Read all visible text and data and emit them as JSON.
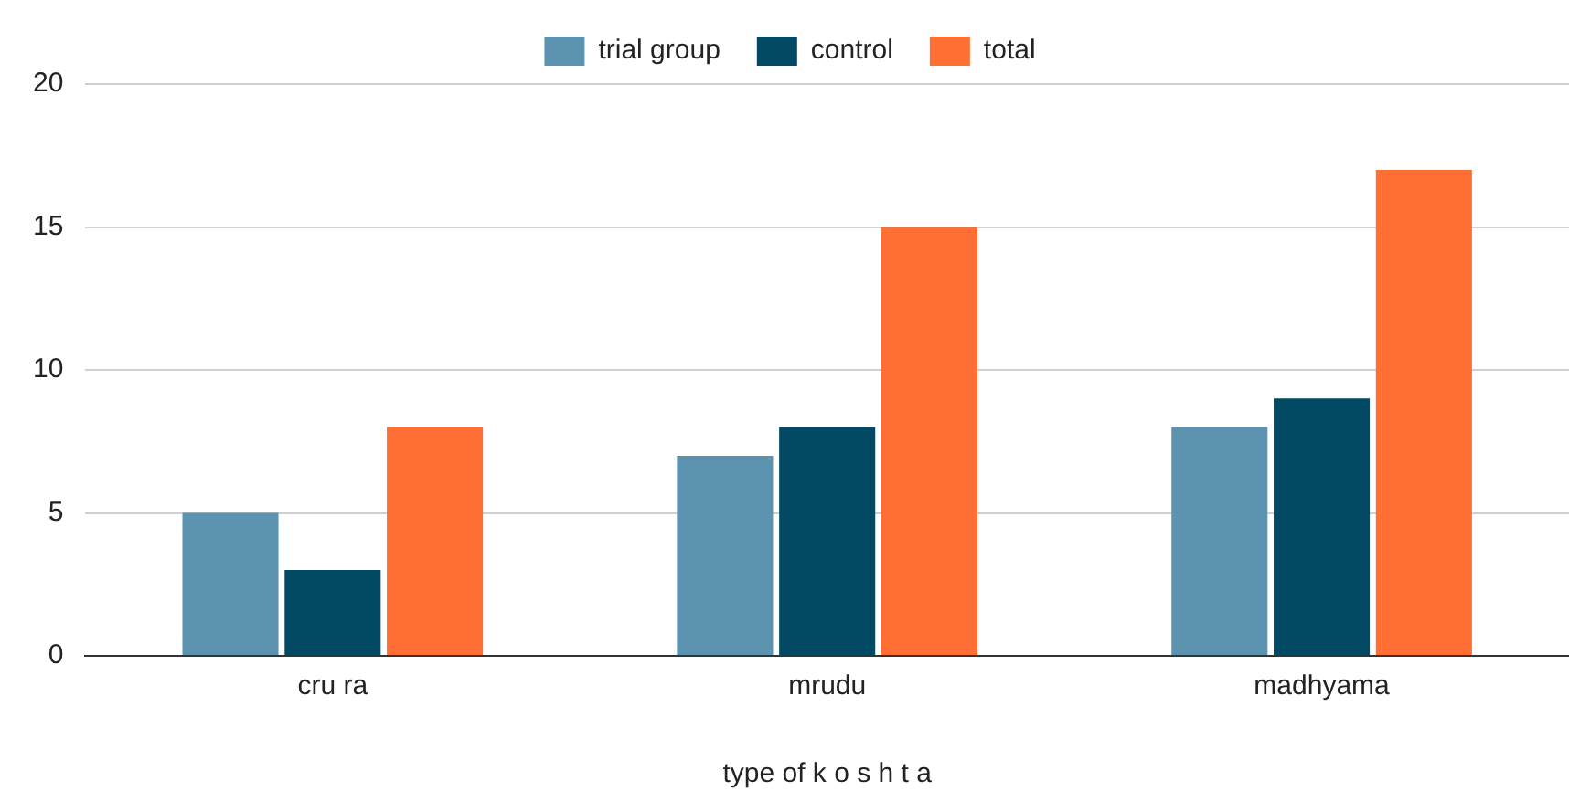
{
  "chart_data": {
    "type": "bar",
    "xlabel": "type of k o s h t a",
    "categories": [
      "cru ra",
      "mrudu",
      "madhyama"
    ],
    "series": [
      {
        "name": "trial group",
        "color": "#5b93b0",
        "values": [
          5,
          7,
          8
        ]
      },
      {
        "name": "control",
        "color": "#024a64",
        "values": [
          3,
          8,
          9
        ]
      },
      {
        "name": "total",
        "color": "#ff6f33",
        "values": [
          8,
          15,
          17
        ]
      }
    ],
    "ylim": [
      0,
      20
    ],
    "yticks": [
      0,
      5,
      10,
      15,
      20
    ],
    "grid": "y",
    "legend": "top"
  }
}
